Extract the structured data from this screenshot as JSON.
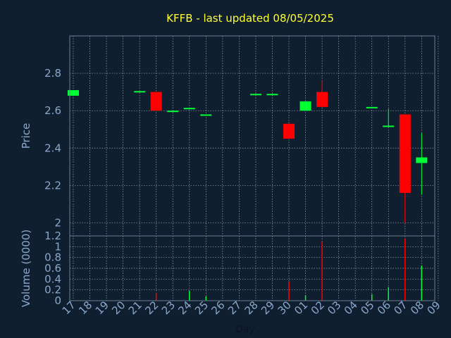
{
  "chart_data": [
    {
      "type": "candlestick",
      "title": "KFFB - last updated 08/05/2025",
      "xlabel": "Day",
      "ylabel": "Price",
      "ylim": [
        1.93,
        3.0
      ],
      "yticks": [
        2,
        2.2,
        2.4,
        2.6,
        2.8
      ],
      "ytick_labels": [
        "2",
        "2.2",
        "2.4",
        "2.6",
        "2.8"
      ],
      "grid": true,
      "colors": {
        "up": "#00ff33",
        "down": "#ff0000",
        "title": "#ffff33",
        "axis_text": "#8aa8cc",
        "grid": "#ffffff",
        "frame": "#6b7d94"
      },
      "x_tick_labels": [
        "17",
        "18",
        "19",
        "20",
        "21",
        "22",
        "23",
        "24",
        "25",
        "26",
        "27",
        "28",
        "29",
        "30",
        "01",
        "02",
        "03",
        "04",
        "05",
        "06",
        "07",
        "08",
        "09"
      ],
      "candles": [
        {
          "day": "17",
          "open": 2.68,
          "close": 2.71,
          "high": 2.71,
          "low": 2.68
        },
        {
          "day": "21",
          "open": 2.7,
          "close": 2.705,
          "high": 2.705,
          "low": 2.7
        },
        {
          "day": "22",
          "open": 2.7,
          "close": 2.6,
          "high": 2.7,
          "low": 2.6
        },
        {
          "day": "23",
          "open": 2.6,
          "close": 2.6,
          "high": 2.6,
          "low": 2.6
        },
        {
          "day": "24",
          "open": 2.61,
          "close": 2.615,
          "high": 2.615,
          "low": 2.61
        },
        {
          "day": "25",
          "open": 2.58,
          "close": 2.58,
          "high": 2.58,
          "low": 2.58
        },
        {
          "day": "28",
          "open": 2.69,
          "close": 2.69,
          "high": 2.69,
          "low": 2.69
        },
        {
          "day": "29",
          "open": 2.69,
          "close": 2.69,
          "high": 2.69,
          "low": 2.69
        },
        {
          "day": "30",
          "open": 2.53,
          "close": 2.45,
          "high": 2.53,
          "low": 2.45
        },
        {
          "day": "01",
          "open": 2.6,
          "close": 2.65,
          "high": 2.65,
          "low": 2.6
        },
        {
          "day": "02",
          "open": 2.7,
          "close": 2.62,
          "high": 2.76,
          "low": 2.62
        },
        {
          "day": "05",
          "open": 2.62,
          "close": 2.62,
          "high": 2.62,
          "low": 2.62
        },
        {
          "day": "06",
          "open": 2.52,
          "close": 2.52,
          "high": 2.61,
          "low": 2.52
        },
        {
          "day": "07",
          "open": 2.58,
          "close": 2.16,
          "high": 2.58,
          "low": 2.0
        },
        {
          "day": "08",
          "open": 2.32,
          "close": 2.35,
          "high": 2.48,
          "low": 2.15
        }
      ]
    },
    {
      "type": "bar",
      "xlabel": "Day",
      "ylabel": "Volume (0000)",
      "ylim": [
        0,
        1.2
      ],
      "yticks": [
        0,
        0.2,
        0.4,
        0.6,
        0.8,
        1,
        1.2
      ],
      "ytick_labels": [
        "0",
        "0.2",
        "0.4",
        "0.6",
        "0.8",
        "1",
        "1.2"
      ],
      "grid": true,
      "categories": [
        "22",
        "24",
        "25",
        "30",
        "01",
        "02",
        "05",
        "06",
        "07",
        "08"
      ],
      "values": [
        0.15,
        0.18,
        0.08,
        0.35,
        0.1,
        1.1,
        0.12,
        0.25,
        1.15,
        0.65
      ],
      "bar_colors": [
        "#ff0000",
        "#00ff33",
        "#00ff33",
        "#ff0000",
        "#00ff33",
        "#ff0000",
        "#00ff33",
        "#00ff33",
        "#ff0000",
        "#00ff33"
      ]
    }
  ]
}
